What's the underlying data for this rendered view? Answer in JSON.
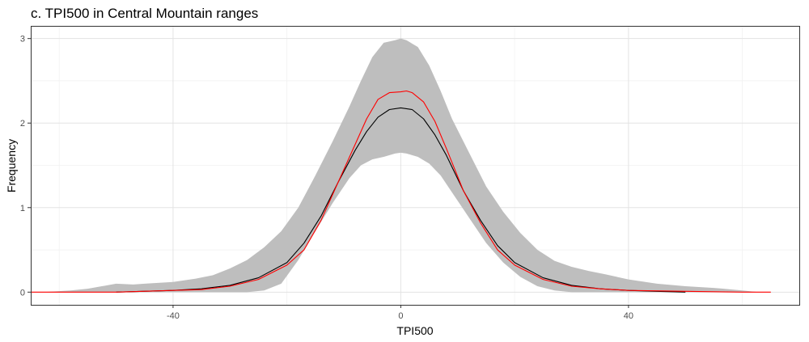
{
  "chart_data": {
    "type": "area",
    "title": "c. TPI500 in Central Mountain ranges",
    "xlabel": "TPI500",
    "ylabel": "Frequency",
    "xlim": [
      -65,
      70
    ],
    "ylim": [
      -0.15,
      3.15
    ],
    "x_ticks": [
      -40,
      0,
      40
    ],
    "y_ticks": [
      0,
      1,
      2,
      3
    ],
    "x_tick_labels": [
      "-40",
      "0",
      "40"
    ],
    "y_tick_labels": [
      "0",
      "1",
      "2",
      "3"
    ],
    "grid": true,
    "legend": "none",
    "colors": {
      "band": "#bebebe",
      "mean_line": "#000000",
      "reference_line": "#ff0000",
      "panel_border": "#333333",
      "grid": "#e3e3e3"
    },
    "band": {
      "x": [
        -63,
        -58,
        -55,
        -50,
        -47,
        -45,
        -40,
        -36,
        -33,
        -30,
        -27,
        -24,
        -21,
        -18,
        -15,
        -12,
        -9,
        -7,
        -5,
        -3,
        -1,
        0,
        1,
        3,
        5,
        7,
        9,
        12,
        15,
        18,
        21,
        24,
        27,
        30,
        33,
        36,
        40,
        45,
        50,
        55,
        60,
        63
      ],
      "upper": [
        0.0,
        0.02,
        0.04,
        0.1,
        0.09,
        0.1,
        0.12,
        0.16,
        0.2,
        0.28,
        0.38,
        0.53,
        0.72,
        1.0,
        1.38,
        1.78,
        2.2,
        2.5,
        2.78,
        2.95,
        2.98,
        3.0,
        2.98,
        2.9,
        2.68,
        2.38,
        2.05,
        1.65,
        1.25,
        0.95,
        0.7,
        0.5,
        0.37,
        0.3,
        0.25,
        0.21,
        0.15,
        0.1,
        0.07,
        0.05,
        0.02,
        0.0
      ],
      "lower": [
        0.0,
        0.0,
        0.0,
        0.0,
        0.0,
        0.0,
        0.0,
        0.0,
        0.0,
        0.0,
        0.0,
        0.02,
        0.1,
        0.38,
        0.72,
        1.05,
        1.35,
        1.5,
        1.57,
        1.6,
        1.64,
        1.65,
        1.64,
        1.6,
        1.52,
        1.38,
        1.18,
        0.88,
        0.58,
        0.35,
        0.18,
        0.07,
        0.02,
        0.0,
        0.0,
        0.0,
        0.0,
        0.0,
        0.0,
        0.0,
        0.0,
        0.0
      ]
    },
    "series": [
      {
        "x": [
          -50,
          -40,
          -35,
          -30,
          -25,
          -20,
          -17,
          -14,
          -11,
          -8,
          -6,
          -4,
          -2,
          0,
          2,
          4,
          6,
          8,
          11,
          14,
          17,
          20,
          25,
          30,
          35,
          40,
          45,
          50
        ],
        "values": [
          0.0,
          0.02,
          0.04,
          0.08,
          0.17,
          0.35,
          0.58,
          0.9,
          1.3,
          1.68,
          1.9,
          2.07,
          2.16,
          2.18,
          2.16,
          2.05,
          1.86,
          1.62,
          1.2,
          0.85,
          0.55,
          0.35,
          0.17,
          0.08,
          0.04,
          0.02,
          0.01,
          0.0
        ]
      },
      {
        "x": [
          -65,
          -50,
          -40,
          -35,
          -30,
          -25,
          -20,
          -17,
          -14,
          -11,
          -8,
          -6,
          -4,
          -2,
          0,
          1,
          2,
          4,
          6,
          8,
          11,
          14,
          17,
          20,
          25,
          30,
          35,
          40,
          50,
          60,
          65
        ],
        "values": [
          0.0,
          0.0,
          0.02,
          0.03,
          0.07,
          0.15,
          0.32,
          0.5,
          0.85,
          1.3,
          1.75,
          2.05,
          2.28,
          2.36,
          2.37,
          2.38,
          2.36,
          2.25,
          2.02,
          1.7,
          1.2,
          0.82,
          0.5,
          0.32,
          0.15,
          0.07,
          0.04,
          0.02,
          0.01,
          0.0,
          0.0
        ]
      }
    ]
  }
}
